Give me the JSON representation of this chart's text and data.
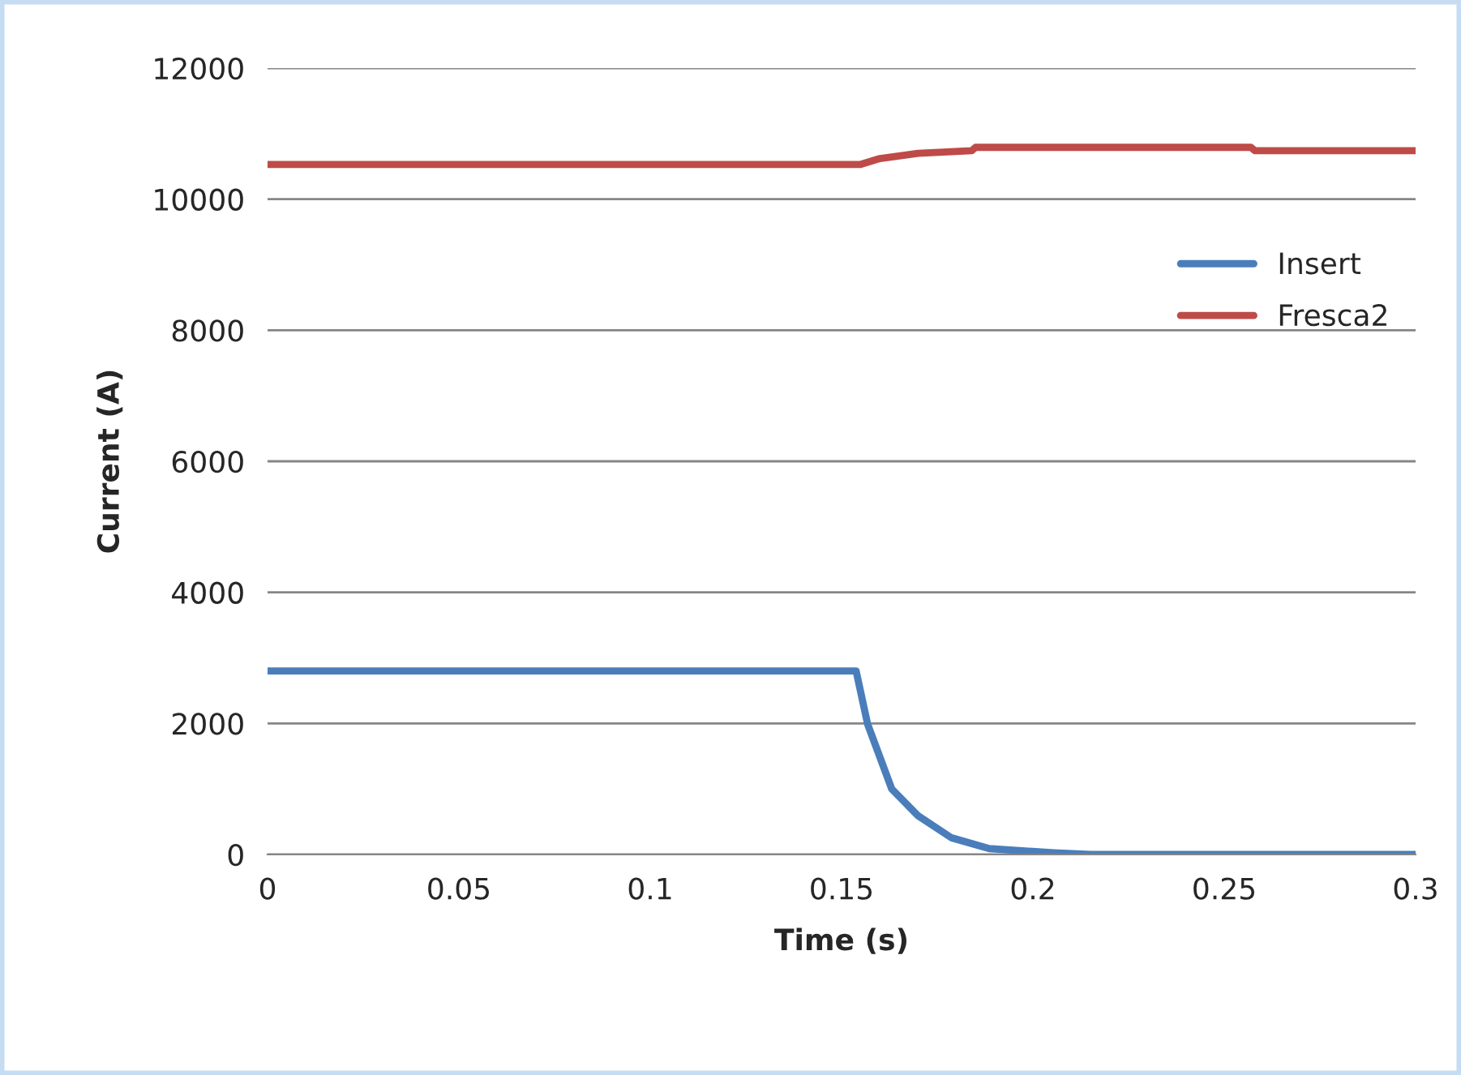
{
  "chart_data": {
    "type": "line",
    "xlabel": "Time (s)",
    "ylabel": "Current (A)",
    "xlim": [
      0,
      0.3
    ],
    "xticks": [
      0,
      0.05,
      0.1,
      0.15,
      0.2,
      0.25,
      0.3
    ],
    "ylim": [
      0,
      12000
    ],
    "yticks": [
      0,
      2000,
      4000,
      6000,
      8000,
      10000,
      12000
    ],
    "grid": "y",
    "legend": "top right",
    "marker": "none",
    "line_style": "solid",
    "series": [
      {
        "name": "Insert",
        "color": "#4a7ebb",
        "x": [
          0,
          0.1538,
          0.1568,
          0.1631,
          0.17,
          0.1787,
          0.1886,
          0.2055,
          0.215,
          0.3
        ],
        "values": [
          2800,
          2800,
          1990,
          1000,
          590,
          255,
          90,
          25,
          0,
          0
        ]
      },
      {
        "name": "Fresca2",
        "color": "#be4b48",
        "x": [
          0,
          0.155,
          0.16,
          0.17,
          0.184,
          0.185,
          0.257,
          0.258,
          0.3
        ],
        "values": [
          10530,
          10530,
          10620,
          10700,
          10740,
          10790,
          10790,
          10740,
          10740
        ]
      }
    ]
  }
}
